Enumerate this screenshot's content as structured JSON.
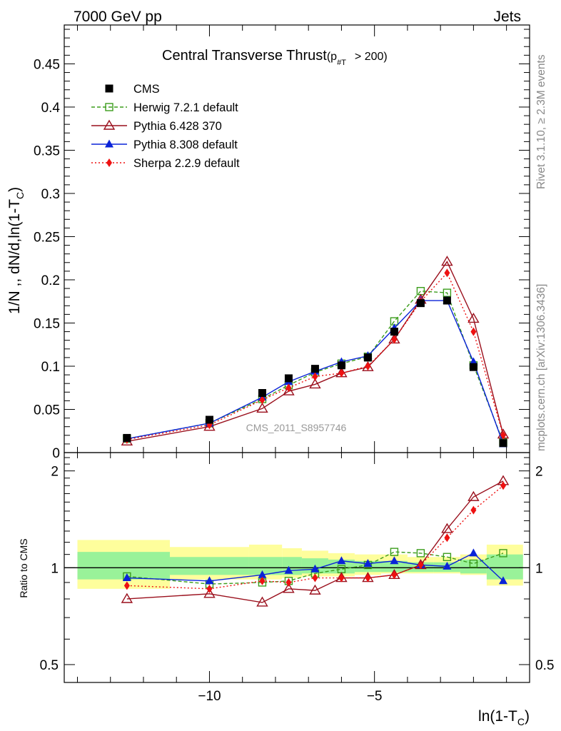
{
  "header": {
    "left": "7000 GeV pp",
    "right": "Jets"
  },
  "side": {
    "rivet": "Rivet 3.1.10, ≥ 2.3M events",
    "mcplots": "mcplots.cern.ch [arXiv:1306.3436]"
  },
  "chart_data": [
    {
      "type": "line",
      "title": "Central Transverse Thrust",
      "title_suffix": "(p",
      "title_sub": "#T",
      "title_cut": "> 200)",
      "ylabel": "1/N ,, dN/d,ln(1-T",
      "ylabel_sub": "C",
      "ylabel_end": ")",
      "watermark": "CMS_2011_S8957746",
      "xlim": [
        -14.4,
        -0.3
      ],
      "ylim": [
        0,
        0.495
      ],
      "y_ticks": [
        0,
        0.05,
        0.1,
        0.15,
        0.2,
        0.25,
        0.3,
        0.35,
        0.4,
        0.45
      ],
      "y_tick_labels": [
        "0",
        "0.05",
        "0.1",
        "0.15",
        "0.2",
        "0.25",
        "0.3",
        "0.35",
        "0.4",
        "0.45"
      ],
      "x": [
        -12.5,
        -10.0,
        -8.4,
        -7.6,
        -6.8,
        -6.0,
        -5.2,
        -4.4,
        -3.6,
        -2.8,
        -2.0,
        -1.1
      ],
      "legend_position": "top-left",
      "series": [
        {
          "name": "CMS",
          "color": "#000000",
          "marker": "square",
          "values": [
            0.017,
            0.038,
            0.069,
            0.086,
            0.097,
            0.101,
            0.11,
            0.14,
            0.173,
            0.176,
            0.099,
            0.011
          ]
        },
        {
          "name": "Herwig 7.2.1 default",
          "color": "#3c9d1c",
          "marker": "open-square",
          "dash": "5,3",
          "values": [
            0.016,
            0.034,
            0.062,
            0.078,
            0.093,
            0.103,
            0.111,
            0.152,
            0.187,
            0.185,
            0.101,
            0.012
          ]
        },
        {
          "name": "Pythia 6.428 370",
          "color": "#9a0f1c",
          "marker": "open-triangle",
          "values": [
            0.013,
            0.03,
            0.051,
            0.071,
            0.079,
            0.092,
            0.099,
            0.131,
            0.177,
            0.221,
            0.155,
            0.021
          ]
        },
        {
          "name": "Pythia 8.308 default",
          "color": "#0a23d8",
          "marker": "triangle",
          "values": [
            0.016,
            0.034,
            0.064,
            0.082,
            0.094,
            0.105,
            0.112,
            0.144,
            0.176,
            0.176,
            0.105,
            0.01
          ]
        },
        {
          "name": "Sherpa 2.2.9 default",
          "color": "#ee1111",
          "marker": "diamond",
          "dash": "2,3",
          "values": [
            0.015,
            0.032,
            0.061,
            0.075,
            0.088,
            0.092,
            0.1,
            0.131,
            0.175,
            0.208,
            0.14,
            0.02
          ]
        }
      ]
    },
    {
      "type": "line",
      "ylabel": "Ratio to CMS",
      "xlabel": "ln(1-T",
      "xlabel_sub": "C",
      "xlabel_end": ")",
      "xlim": [
        -14.4,
        -0.3
      ],
      "ylim": [
        0.44,
        2.28
      ],
      "y_ticks": [
        0.5,
        1,
        2
      ],
      "y_tick_labels": [
        "0.5",
        "1",
        "2"
      ],
      "x_ticks": [
        -10,
        -5
      ],
      "x_tick_labels": [
        "−10",
        "−5"
      ],
      "reference_line": 1,
      "uncertainty_bands": {
        "edges": [
          -14.0,
          -11.2,
          -8.8,
          -7.8,
          -7.2,
          -6.4,
          -5.6,
          -4.8,
          -4.0,
          -3.2,
          -2.4,
          -1.6,
          -0.5
        ],
        "yellow_lo": [
          0.86,
          0.92,
          0.92,
          0.93,
          0.94,
          0.94,
          0.95,
          0.96,
          0.96,
          0.96,
          0.95,
          0.88
        ],
        "yellow_hi": [
          1.22,
          1.16,
          1.18,
          1.15,
          1.13,
          1.11,
          1.1,
          1.1,
          1.08,
          1.08,
          1.1,
          1.18
        ],
        "green_lo": [
          0.92,
          0.95,
          0.95,
          0.95,
          0.96,
          0.96,
          0.97,
          0.97,
          0.97,
          0.97,
          0.96,
          0.92
        ],
        "green_hi": [
          1.12,
          1.08,
          1.08,
          1.08,
          1.07,
          1.06,
          1.05,
          1.05,
          1.04,
          1.04,
          1.06,
          1.1
        ]
      },
      "x": [
        -12.5,
        -10.0,
        -8.4,
        -7.6,
        -6.8,
        -6.0,
        -5.2,
        -4.4,
        -3.6,
        -2.8,
        -2.0,
        -1.1
      ],
      "series": [
        {
          "name": "Herwig 7.2.1 default",
          "color": "#3c9d1c",
          "marker": "open-square",
          "dash": "5,3",
          "values": [
            0.94,
            0.89,
            0.9,
            0.91,
            0.96,
            0.99,
            1.02,
            1.12,
            1.11,
            1.08,
            1.03,
            1.11
          ]
        },
        {
          "name": "Pythia 6.428 370",
          "color": "#9a0f1c",
          "marker": "open-triangle",
          "values": [
            0.8,
            0.83,
            0.78,
            0.86,
            0.85,
            0.93,
            0.93,
            0.95,
            1.02,
            1.32,
            1.66,
            1.86
          ]
        },
        {
          "name": "Pythia 8.308 default",
          "color": "#0a23d8",
          "marker": "triangle",
          "values": [
            0.93,
            0.91,
            0.95,
            0.98,
            0.99,
            1.05,
            1.03,
            1.05,
            1.02,
            1.01,
            1.11,
            0.91
          ]
        },
        {
          "name": "Sherpa 2.2.9 default",
          "color": "#ee1111",
          "marker": "diamond",
          "dash": "2,3",
          "values": [
            0.88,
            0.86,
            0.91,
            0.9,
            0.93,
            0.93,
            0.93,
            0.95,
            1.02,
            1.24,
            1.51,
            1.8
          ]
        }
      ]
    }
  ]
}
